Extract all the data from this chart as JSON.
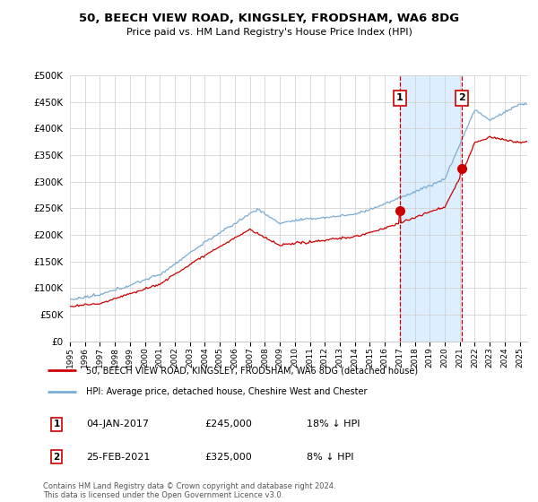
{
  "title": "50, BEECH VIEW ROAD, KINGSLEY, FRODSHAM, WA6 8DG",
  "subtitle": "Price paid vs. HM Land Registry's House Price Index (HPI)",
  "legend_line1": "50, BEECH VIEW ROAD, KINGSLEY, FRODSHAM, WA6 8DG (detached house)",
  "legend_line2": "HPI: Average price, detached house, Cheshire West and Chester",
  "annotation1_label": "1",
  "annotation1_date": "04-JAN-2017",
  "annotation1_price": "£245,000",
  "annotation1_hpi": "18% ↓ HPI",
  "annotation2_label": "2",
  "annotation2_date": "25-FEB-2021",
  "annotation2_price": "£325,000",
  "annotation2_hpi": "8% ↓ HPI",
  "footer": "Contains HM Land Registry data © Crown copyright and database right 2024.\nThis data is licensed under the Open Government Licence v3.0.",
  "hpi_color": "#7aadd4",
  "price_color": "#cc0000",
  "annotation_color": "#cc0000",
  "shade_color": "#ddeeff",
  "ylim": [
    0,
    500000
  ],
  "yticks": [
    0,
    50000,
    100000,
    150000,
    200000,
    250000,
    300000,
    350000,
    400000,
    450000,
    500000
  ],
  "sale1_year": 2017.0,
  "sale1_price": 245000,
  "sale2_year": 2021.12,
  "sale2_price": 325000,
  "xlim_start": 1995,
  "xlim_end": 2025.5
}
